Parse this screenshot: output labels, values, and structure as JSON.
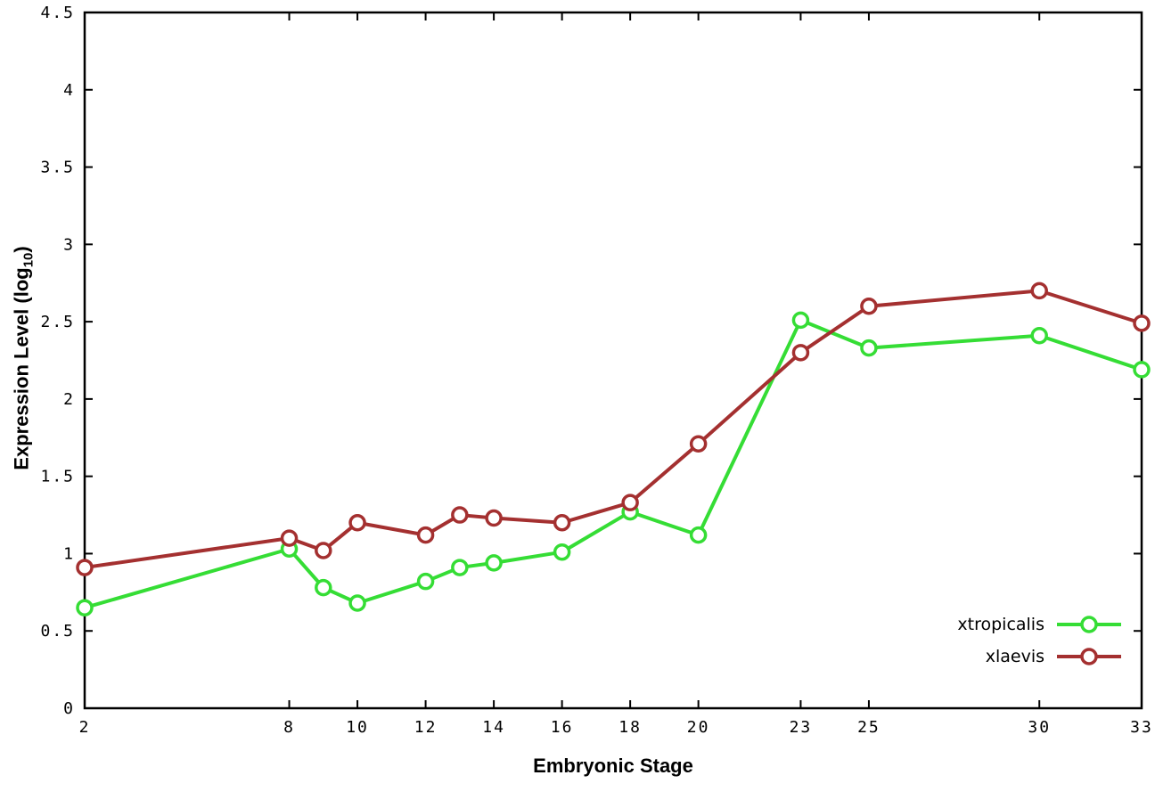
{
  "chart_data": {
    "type": "line",
    "title": "",
    "xlabel": "Embryonic Stage",
    "ylabel": "Expression Level (log10)",
    "ylabel_parts": {
      "main": "Expression Level (log",
      "sub": "10",
      "end": ")"
    },
    "x": [
      2,
      8,
      9,
      10,
      12,
      13,
      14,
      16,
      18,
      20,
      23,
      25,
      30,
      33
    ],
    "series": [
      {
        "name": "xtropicalis",
        "color": "#35dd35",
        "marker": "open-circle",
        "values": [
          0.65,
          1.03,
          0.78,
          0.68,
          0.82,
          0.91,
          0.94,
          1.01,
          1.27,
          1.12,
          2.51,
          2.33,
          2.41,
          2.19
        ]
      },
      {
        "name": "xlaevis",
        "color": "#a43030",
        "marker": "open-circle",
        "values": [
          0.91,
          1.1,
          1.02,
          1.2,
          1.12,
          1.25,
          1.23,
          1.2,
          1.33,
          1.71,
          2.3,
          2.6,
          2.7,
          2.49
        ]
      }
    ],
    "xlim": [
      2,
      33
    ],
    "ylim": [
      0,
      4.5
    ],
    "xticks": [
      2,
      8,
      10,
      12,
      14,
      16,
      18,
      20,
      23,
      25,
      30,
      33
    ],
    "yticks": [
      0,
      0.5,
      1,
      1.5,
      2,
      2.5,
      3,
      3.5,
      4,
      4.5
    ],
    "ytick_labels": [
      "0",
      "0.5",
      "1",
      "1.5",
      "2",
      "2.5",
      "3",
      "3.5",
      "4",
      "4.5"
    ],
    "grid": false,
    "legend_position": "bottom-right",
    "axis_color": "#000000",
    "background": "#ffffff"
  }
}
